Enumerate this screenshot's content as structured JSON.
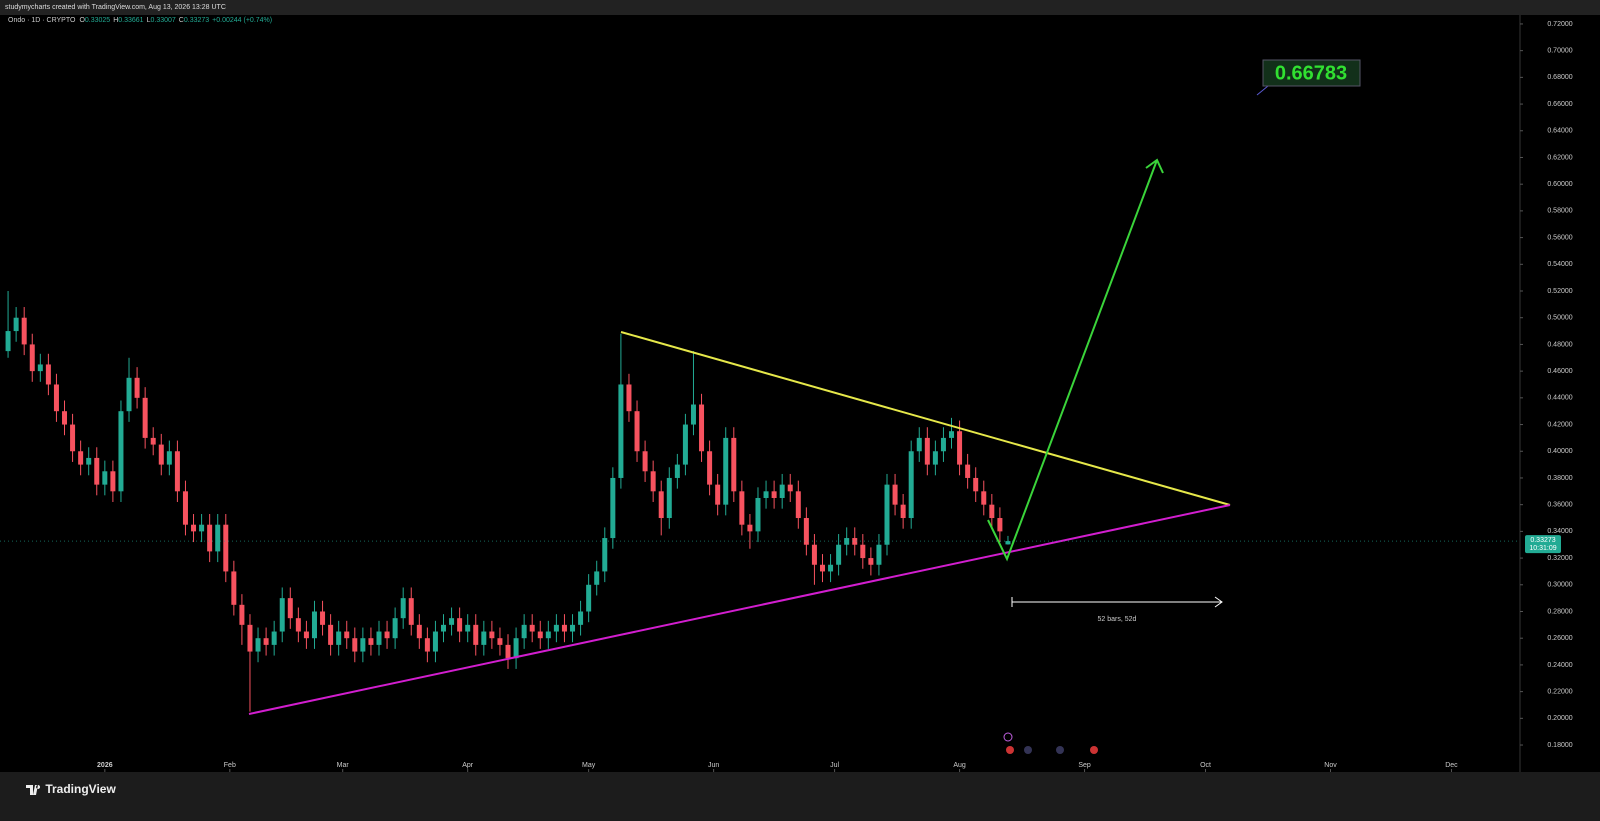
{
  "header": {
    "attribution": "studymycharts created with TradingView.com, Aug 13, 2026 13:28 UTC",
    "brand": "TradingView"
  },
  "chart_data": {
    "type": "candlestick",
    "title": "Ondo · 1D · CRYPTO",
    "legend": [
      {
        "label": "O",
        "value": "0.33025"
      },
      {
        "label": "H",
        "value": "0.33661"
      },
      {
        "label": "L",
        "value": "0.33007"
      },
      {
        "label": "C",
        "value": "0.33273"
      },
      {
        "label": "",
        "value": "+0.00244 (+0.74%)"
      }
    ],
    "x": [
      0,
      2,
      4,
      6,
      8,
      10,
      12,
      14,
      16,
      18,
      20,
      22,
      24,
      26,
      28,
      30,
      32,
      34,
      36,
      38,
      40,
      42,
      44,
      46,
      48,
      50,
      52,
      54,
      56,
      58,
      60,
      62,
      64,
      66,
      68,
      70,
      72,
      74,
      76,
      78,
      80,
      82,
      84,
      86,
      88,
      90,
      92,
      94,
      96,
      98,
      100,
      102,
      104,
      106,
      108,
      110,
      112,
      114,
      116,
      118,
      120,
      122,
      124,
      126,
      128,
      130,
      132,
      134,
      136,
      138,
      140,
      142,
      144,
      146,
      148,
      150,
      152,
      154,
      156,
      158,
      160,
      162,
      164,
      166,
      168,
      170,
      172,
      174,
      176,
      178,
      180,
      182,
      184,
      186,
      188,
      190,
      192,
      194,
      196,
      198,
      200,
      202,
      204,
      206,
      208,
      210,
      212,
      214,
      216,
      218,
      220,
      222,
      224,
      226,
      228,
      230,
      232,
      234,
      236,
      238,
      240,
      242,
      244,
      246,
      248
    ],
    "open": [
      0.475,
      0.49,
      0.5,
      0.48,
      0.46,
      0.465,
      0.45,
      0.43,
      0.42,
      0.4,
      0.39,
      0.395,
      0.375,
      0.385,
      0.37,
      0.43,
      0.455,
      0.44,
      0.41,
      0.405,
      0.39,
      0.4,
      0.37,
      0.345,
      0.34,
      0.345,
      0.325,
      0.345,
      0.31,
      0.285,
      0.27,
      0.25,
      0.26,
      0.255,
      0.265,
      0.29,
      0.275,
      0.265,
      0.26,
      0.28,
      0.27,
      0.255,
      0.265,
      0.26,
      0.25,
      0.26,
      0.255,
      0.265,
      0.26,
      0.275,
      0.29,
      0.27,
      0.26,
      0.25,
      0.265,
      0.27,
      0.275,
      0.265,
      0.27,
      0.255,
      0.265,
      0.26,
      0.255,
      0.245,
      0.26,
      0.27,
      0.265,
      0.26,
      0.265,
      0.27,
      0.265,
      0.27,
      0.28,
      0.3,
      0.31,
      0.335,
      0.38,
      0.45,
      0.43,
      0.4,
      0.385,
      0.37,
      0.35,
      0.38,
      0.39,
      0.42,
      0.435,
      0.4,
      0.375,
      0.36,
      0.41,
      0.37,
      0.345,
      0.34,
      0.365,
      0.37,
      0.365,
      0.375,
      0.37,
      0.35,
      0.33,
      0.315,
      0.31,
      0.315,
      0.33,
      0.335,
      0.33,
      0.32,
      0.315,
      0.33,
      0.375,
      0.36,
      0.35,
      0.4,
      0.41,
      0.39,
      0.4,
      0.41,
      0.415,
      0.39,
      0.38,
      0.37,
      0.36,
      0.35,
      0.33025
    ],
    "high": [
      0.52,
      0.508,
      0.508,
      0.488,
      0.473,
      0.473,
      0.458,
      0.438,
      0.428,
      0.408,
      0.403,
      0.403,
      0.393,
      0.393,
      0.438,
      0.47,
      0.463,
      0.448,
      0.418,
      0.413,
      0.408,
      0.408,
      0.378,
      0.353,
      0.353,
      0.353,
      0.353,
      0.353,
      0.318,
      0.293,
      0.278,
      0.268,
      0.268,
      0.273,
      0.298,
      0.298,
      0.283,
      0.273,
      0.288,
      0.288,
      0.278,
      0.273,
      0.273,
      0.268,
      0.268,
      0.268,
      0.273,
      0.273,
      0.283,
      0.298,
      0.298,
      0.278,
      0.268,
      0.273,
      0.278,
      0.283,
      0.283,
      0.278,
      0.278,
      0.273,
      0.273,
      0.268,
      0.263,
      0.268,
      0.278,
      0.278,
      0.273,
      0.273,
      0.278,
      0.278,
      0.278,
      0.288,
      0.308,
      0.318,
      0.343,
      0.388,
      0.488,
      0.458,
      0.438,
      0.408,
      0.393,
      0.378,
      0.388,
      0.398,
      0.428,
      0.475,
      0.443,
      0.408,
      0.383,
      0.418,
      0.418,
      0.378,
      0.353,
      0.373,
      0.378,
      0.378,
      0.383,
      0.383,
      0.378,
      0.358,
      0.338,
      0.323,
      0.323,
      0.338,
      0.343,
      0.343,
      0.338,
      0.328,
      0.338,
      0.383,
      0.383,
      0.368,
      0.408,
      0.418,
      0.418,
      0.408,
      0.418,
      0.425,
      0.423,
      0.398,
      0.388,
      0.378,
      0.368,
      0.358,
      0.33661
    ],
    "low": [
      0.47,
      0.482,
      0.472,
      0.452,
      0.452,
      0.442,
      0.422,
      0.412,
      0.392,
      0.382,
      0.382,
      0.367,
      0.367,
      0.362,
      0.362,
      0.422,
      0.432,
      0.402,
      0.397,
      0.382,
      0.382,
      0.362,
      0.337,
      0.332,
      0.332,
      0.317,
      0.317,
      0.302,
      0.277,
      0.255,
      0.205,
      0.242,
      0.247,
      0.247,
      0.257,
      0.267,
      0.257,
      0.252,
      0.252,
      0.262,
      0.247,
      0.247,
      0.252,
      0.242,
      0.242,
      0.247,
      0.247,
      0.252,
      0.252,
      0.267,
      0.262,
      0.252,
      0.242,
      0.242,
      0.257,
      0.262,
      0.257,
      0.257,
      0.247,
      0.247,
      0.252,
      0.247,
      0.237,
      0.237,
      0.252,
      0.257,
      0.252,
      0.252,
      0.257,
      0.257,
      0.257,
      0.262,
      0.272,
      0.292,
      0.302,
      0.327,
      0.372,
      0.422,
      0.392,
      0.377,
      0.362,
      0.337,
      0.342,
      0.372,
      0.382,
      0.412,
      0.392,
      0.367,
      0.352,
      0.352,
      0.362,
      0.337,
      0.327,
      0.332,
      0.357,
      0.357,
      0.357,
      0.362,
      0.342,
      0.322,
      0.3,
      0.302,
      0.302,
      0.307,
      0.322,
      0.322,
      0.312,
      0.307,
      0.307,
      0.322,
      0.352,
      0.342,
      0.342,
      0.392,
      0.382,
      0.382,
      0.392,
      0.402,
      0.382,
      0.372,
      0.362,
      0.352,
      0.342,
      0.332,
      0.33007
    ],
    "close": [
      0.49,
      0.5,
      0.48,
      0.46,
      0.465,
      0.45,
      0.43,
      0.42,
      0.4,
      0.39,
      0.395,
      0.375,
      0.385,
      0.37,
      0.43,
      0.455,
      0.44,
      0.41,
      0.405,
      0.39,
      0.4,
      0.37,
      0.345,
      0.34,
      0.345,
      0.325,
      0.345,
      0.31,
      0.285,
      0.27,
      0.25,
      0.26,
      0.255,
      0.265,
      0.29,
      0.275,
      0.265,
      0.26,
      0.28,
      0.27,
      0.255,
      0.265,
      0.26,
      0.25,
      0.26,
      0.255,
      0.265,
      0.26,
      0.275,
      0.29,
      0.27,
      0.26,
      0.25,
      0.265,
      0.27,
      0.275,
      0.265,
      0.27,
      0.255,
      0.265,
      0.26,
      0.255,
      0.245,
      0.26,
      0.27,
      0.265,
      0.26,
      0.265,
      0.27,
      0.265,
      0.27,
      0.28,
      0.3,
      0.31,
      0.335,
      0.38,
      0.45,
      0.43,
      0.4,
      0.385,
      0.37,
      0.35,
      0.38,
      0.39,
      0.42,
      0.435,
      0.4,
      0.375,
      0.36,
      0.41,
      0.37,
      0.345,
      0.34,
      0.365,
      0.37,
      0.365,
      0.375,
      0.37,
      0.35,
      0.33,
      0.315,
      0.31,
      0.315,
      0.33,
      0.335,
      0.33,
      0.32,
      0.315,
      0.33,
      0.375,
      0.36,
      0.35,
      0.4,
      0.41,
      0.39,
      0.4,
      0.41,
      0.415,
      0.39,
      0.38,
      0.37,
      0.36,
      0.35,
      0.34,
      0.33273
    ],
    "up_color": "#22ab94",
    "down_color": "#f7525f",
    "xlim": [
      -2,
      375
    ],
    "xticks": [
      {
        "value": 24,
        "label": "2026"
      },
      {
        "value": 55,
        "label": "Feb"
      },
      {
        "value": 83,
        "label": "Mar"
      },
      {
        "value": 114,
        "label": "Apr"
      },
      {
        "value": 144,
        "label": "May"
      },
      {
        "value": 175,
        "label": "Jun"
      },
      {
        "value": 205,
        "label": "Jul"
      },
      {
        "value": 236,
        "label": "Aug"
      },
      {
        "value": 267,
        "label": "Sep"
      },
      {
        "value": 297,
        "label": "Oct"
      },
      {
        "value": 328,
        "label": "Nov"
      },
      {
        "value": 358,
        "label": "Dec"
      }
    ],
    "ylim": [
      0.1598,
      0.7267
    ],
    "yticks": [
      {
        "value": 0.72,
        "label": "0.72000"
      },
      {
        "value": 0.7,
        "label": "0.70000"
      },
      {
        "value": 0.68,
        "label": "0.68000"
      },
      {
        "value": 0.66,
        "label": "0.66000"
      },
      {
        "value": 0.64,
        "label": "0.64000"
      },
      {
        "value": 0.62,
        "label": "0.62000"
      },
      {
        "value": 0.6,
        "label": "0.60000"
      },
      {
        "value": 0.58,
        "label": "0.58000"
      },
      {
        "value": 0.56,
        "label": "0.56000"
      },
      {
        "value": 0.54,
        "label": "0.54000"
      },
      {
        "value": 0.52,
        "label": "0.52000"
      },
      {
        "value": 0.5,
        "label": "0.50000"
      },
      {
        "value": 0.48,
        "label": "0.48000"
      },
      {
        "value": 0.46,
        "label": "0.46000"
      },
      {
        "value": 0.44,
        "label": "0.44000"
      },
      {
        "value": 0.42,
        "label": "0.42000"
      },
      {
        "value": 0.4,
        "label": "0.40000"
      },
      {
        "value": 0.38,
        "label": "0.38000"
      },
      {
        "value": 0.36,
        "label": "0.36000"
      },
      {
        "value": 0.34,
        "label": "0.34000"
      },
      {
        "value": 0.32,
        "label": "0.32000"
      },
      {
        "value": 0.3,
        "label": "0.30000"
      },
      {
        "value": 0.28,
        "label": "0.28000"
      },
      {
        "value": 0.26,
        "label": "0.26000"
      },
      {
        "value": 0.24,
        "label": "0.24000"
      },
      {
        "value": 0.22,
        "label": "0.22000"
      },
      {
        "value": 0.2,
        "label": "0.20000"
      },
      {
        "value": 0.18,
        "label": "0.18000"
      }
    ],
    "last_price": 0.33273,
    "countdown": "10:31:09",
    "target_label": "0.66783",
    "range_label": "52 bars, 52d"
  }
}
